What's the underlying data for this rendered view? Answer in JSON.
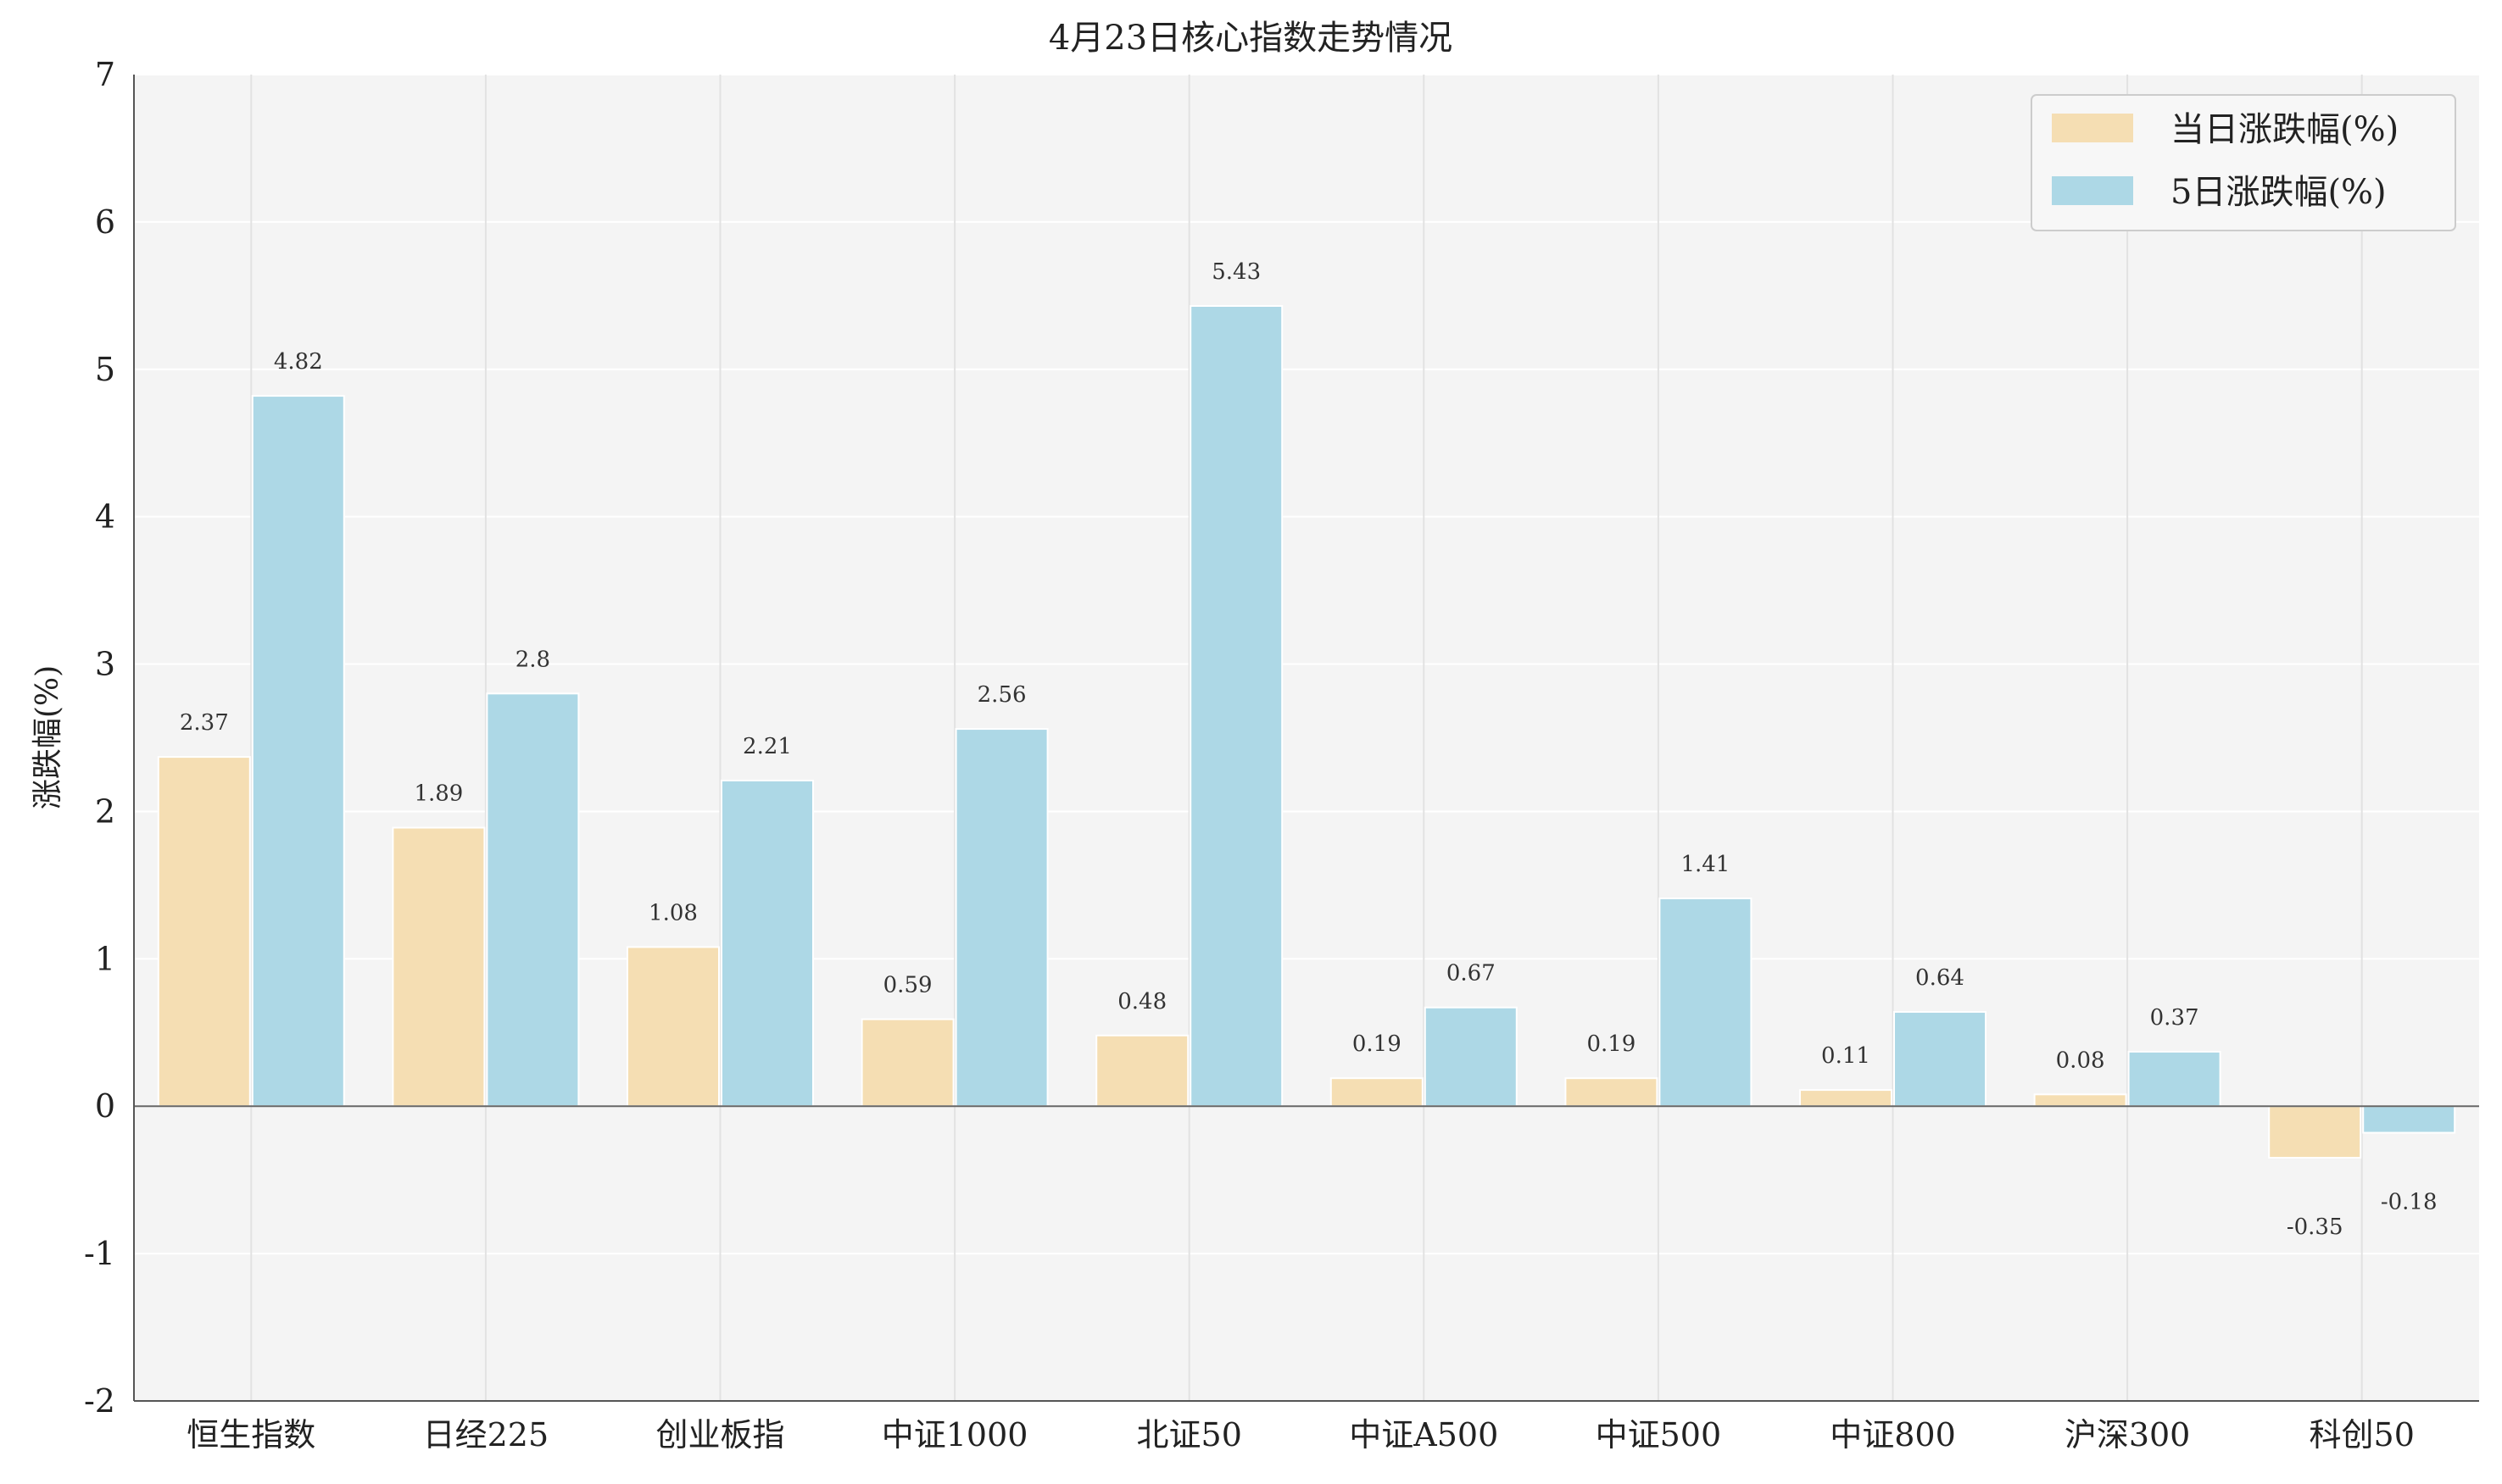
{
  "chart_data": {
    "type": "bar",
    "title": "4月23日核心指数走势情况",
    "xlabel": "",
    "ylabel": "涨跌幅(%)",
    "ylim": [
      -2,
      7
    ],
    "yticks": [
      "-2",
      "-1",
      "0",
      "1",
      "2",
      "3",
      "4",
      "5",
      "6",
      "7"
    ],
    "categories": [
      "恒生指数",
      "日经225",
      "创业板指",
      "中证1000",
      "北证50",
      "中证A500",
      "中证500",
      "中证800",
      "沪深300",
      "科创50"
    ],
    "series": [
      {
        "name": "当日涨跌幅(%)",
        "color": "#F5DEB3",
        "values": [
          2.37,
          1.89,
          1.08,
          0.59,
          0.48,
          0.19,
          0.19,
          0.11,
          0.08,
          -0.35
        ],
        "labels": [
          "2.37",
          "1.89",
          "1.08",
          "0.59",
          "0.48",
          "0.19",
          "0.19",
          "0.11",
          "0.08",
          "-0.35"
        ]
      },
      {
        "name": "5日涨跌幅(%)",
        "color": "#ADD8E6",
        "values": [
          4.82,
          2.8,
          2.21,
          2.56,
          5.43,
          0.67,
          1.41,
          0.64,
          0.37,
          -0.18
        ],
        "labels": [
          "4.82",
          "2.8",
          "2.21",
          "2.56",
          "5.43",
          "0.67",
          "1.41",
          "0.64",
          "0.37",
          "-0.18"
        ]
      }
    ],
    "grid": true,
    "legend_position": "top-right",
    "plot_background": "#F4F4F4"
  }
}
